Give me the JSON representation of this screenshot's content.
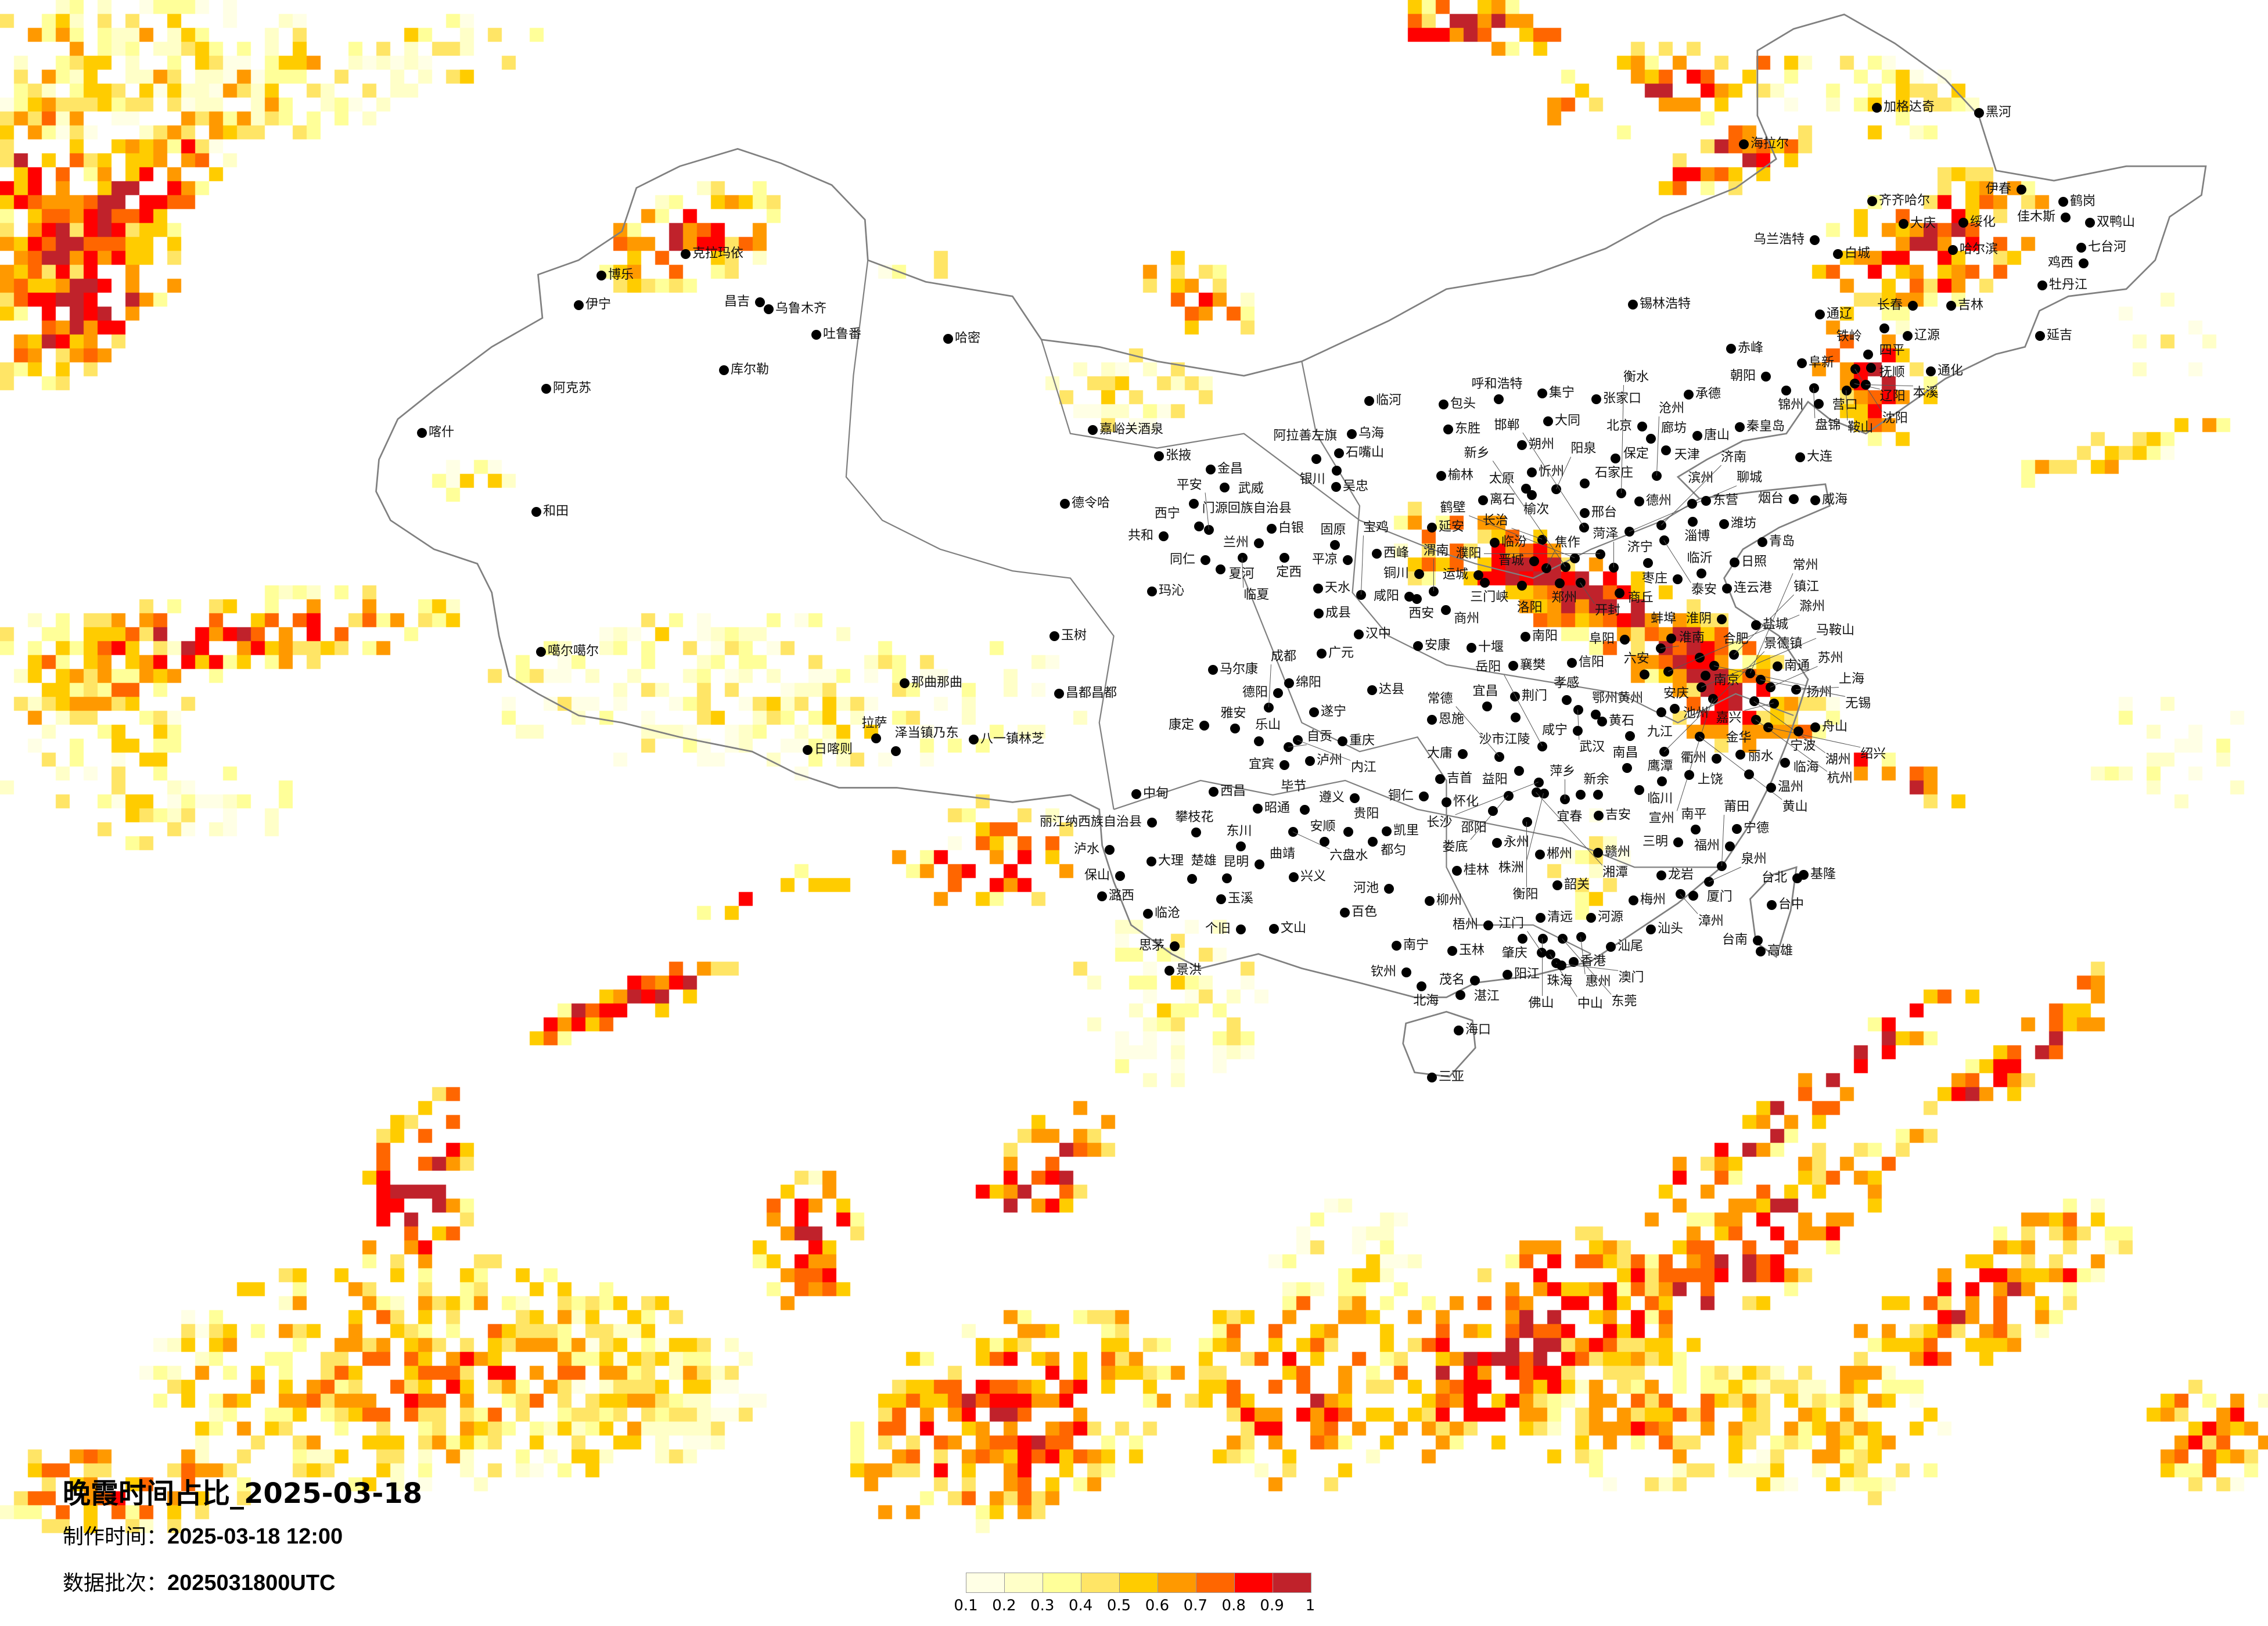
{
  "map": {
    "title": "晚霞时间占比_2025-03-18",
    "production_time_label": "制作时间：",
    "production_time_value": "2025-03-18 12:00",
    "batch_label": "数据批次：",
    "batch_value": "2025031800UTC",
    "border_color": "#808080"
  },
  "legend": {
    "ticks": [
      "0.1",
      "0.2",
      "0.3",
      "0.4",
      "0.5",
      "0.6",
      "0.7",
      "0.8",
      "0.9",
      "1"
    ],
    "colors": [
      "#ffffe5",
      "#ffffc8",
      "#ffff99",
      "#ffe566",
      "#ffcc00",
      "#ff9900",
      "#ff6600",
      "#ff0000",
      "#c0222b"
    ]
  },
  "cities": [
    "克拉玛依",
    "博乐",
    "伊宁",
    "昌吉",
    "乌鲁木齐",
    "吐鲁番",
    "库尔勒",
    "阿克苏",
    "喀什",
    "和田",
    "噶尔噶尔",
    "哈密",
    "嘉峪关酒泉",
    "张掖",
    "金昌",
    "武威",
    "门源回族自治县",
    "德令哈",
    "西宁",
    "平安",
    "共和",
    "兰州",
    "白银",
    "临夏",
    "同仁",
    "夏河",
    "定西",
    "玛沁",
    "玉树",
    "阿拉善左旗",
    "固原",
    "天水",
    "成县",
    "安康",
    "广元",
    "马尔康",
    "绵阳",
    "德阳",
    "成都",
    "达县",
    "遂宁",
    "康定",
    "雅安",
    "乐山",
    "自贡",
    "内江",
    "宜宾",
    "泸州",
    "重庆",
    "恩施",
    "那曲那曲",
    "昌都昌都",
    "拉萨",
    "日喀则",
    "泽当镇乃东",
    "八一镇林芝",
    "中甸",
    "西昌",
    "丽江纳西族自治县",
    "攀枝花",
    "泸水",
    "大理",
    "保山",
    "潞西",
    "楚雄",
    "昆明",
    "东川",
    "昭通",
    "曲靖",
    "玉溪",
    "临沧",
    "个旧",
    "文山",
    "思茅",
    "景洪",
    "毕节",
    "六盘水",
    "遵义",
    "安顺",
    "贵阳",
    "凯里",
    "都匀",
    "兴义",
    "铜仁",
    "吉首",
    "怀化",
    "桂林",
    "河池",
    "柳州",
    "百色",
    "南宁",
    "玉林",
    "钦州",
    "北海",
    "海口",
    "三亚",
    "临河",
    "包头",
    "呼和浩特",
    "集宁",
    "张家口",
    "大同",
    "东胜",
    "乌海",
    "石嘴山",
    "银川",
    "吴忠",
    "北京",
    "廊坊",
    "天津",
    "保定",
    "唐山",
    "承德",
    "秦皇岛",
    "阜新",
    "朝阳",
    "锦州",
    "盘锦",
    "营口",
    "大连",
    "朔州",
    "忻州",
    "太原",
    "榆次",
    "阳泉",
    "石家庄",
    "榆林",
    "离石",
    "延安",
    "临汾",
    "长治",
    "邢台",
    "邯郸",
    "衡水",
    "沧州",
    "德州",
    "聊城",
    "济南",
    "泰安",
    "淄博",
    "滨州",
    "东营",
    "潍坊",
    "青岛",
    "烟台",
    "威海",
    "日照",
    "临沂",
    "枣庄",
    "济宁",
    "菏泽",
    "濮阳",
    "鹤壁",
    "新乡",
    "焦作",
    "晋城",
    "运城",
    "三门峡",
    "洛阳",
    "郑州",
    "开封",
    "商丘",
    "铜川",
    "渭南",
    "咸阳",
    "西安",
    "宝鸡",
    "商州",
    "连云港",
    "淮阴",
    "盐城",
    "西峰",
    "平凉",
    "汉中",
    "南阳",
    "十堰",
    "襄樊",
    "信阳",
    "阜阳",
    "蚌埠",
    "淮南",
    "滁州",
    "扬州",
    "镇江",
    "南京",
    "六安",
    "合肥",
    "马鞍山",
    "常州",
    "无锡",
    "苏州",
    "南通",
    "上海",
    "湖州",
    "嘉兴",
    "杭州",
    "绍兴",
    "宁波",
    "舟山",
    "宣州",
    "荆门",
    "宜昌",
    "沙市江陵",
    "孝感",
    "武汉",
    "鄂州黄州",
    "黄石",
    "咸宁",
    "安庆",
    "池州",
    "黄山",
    "九江",
    "岳阳",
    "大庸",
    "常德",
    "益阳",
    "长沙",
    "湘潭",
    "株洲",
    "娄底",
    "邵阳",
    "衡阳",
    "萍乡",
    "宜春",
    "新余",
    "吉安",
    "南昌",
    "景德镇",
    "鹰潭",
    "上饶",
    "临川",
    "衢州",
    "金华",
    "丽水",
    "临海",
    "温州",
    "永州",
    "郴州",
    "赣州",
    "南平",
    "三明",
    "宁德",
    "福州",
    "莆田",
    "泉州",
    "龙岩",
    "漳州",
    "厦门",
    "台北",
    "基隆",
    "台中",
    "台南",
    "高雄",
    "韶关",
    "梅州",
    "汕头",
    "河源",
    "清远",
    "梧州",
    "肇庆",
    "佛山",
    "东莞",
    "惠州",
    "汕尾",
    "江门",
    "中山",
    "香港",
    "澳门",
    "珠海",
    "阳江",
    "茂名",
    "湛江",
    "加格达奇",
    "黑河",
    "海拉尔",
    "伊春",
    "鹤岗",
    "佳木斯",
    "双鸭山",
    "齐齐哈尔",
    "大庆",
    "绥化",
    "哈尔滨",
    "乌兰浩特",
    "白城",
    "七台河",
    "鸡西",
    "牡丹江",
    "长春",
    "吉林",
    "通辽",
    "锡林浩特",
    "赤峰",
    "四平",
    "辽源",
    "延吉",
    "铁岭",
    "沈阳",
    "抚顺",
    "通化",
    "辽阳",
    "鞍山",
    "本溪"
  ]
}
